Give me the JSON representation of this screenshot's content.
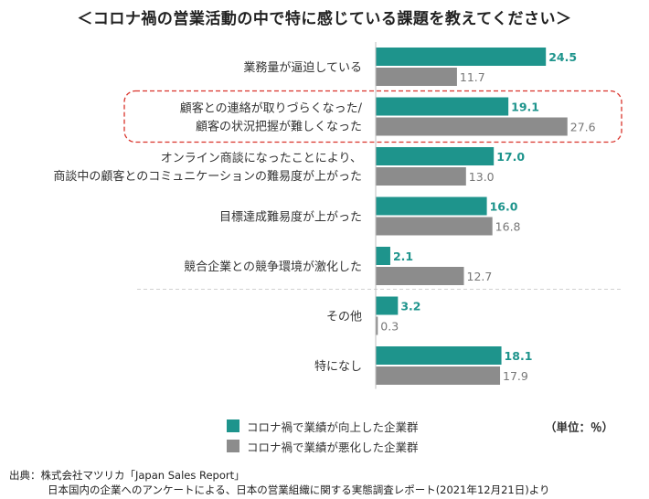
{
  "title": "＜コロナ禍の営業活動の中で特に感じている課題を教えてください＞",
  "colors": {
    "improved": "#1e948c",
    "worsened": "#8c8c8c",
    "highlight": "#d9322a"
  },
  "legend": {
    "improved": "コロナ禍で業績が向上した企業群",
    "worsened": "コロナ禍で業績が悪化した企業群"
  },
  "unit": "（単位：％）",
  "source": {
    "line1": "出典：株式会社マツリカ「Japan Sales Report」",
    "line2": "日本国内の企業へのアンケートによる、日本の営業組織に関する実態調査レポート(2021年12月21日)より"
  },
  "chart_data": {
    "type": "bar",
    "orientation": "horizontal",
    "categories": [
      [
        "業務量が逼迫している"
      ],
      [
        "顧客との連絡が取りづらくなった/",
        "顧客の状況把握が難しくなった"
      ],
      [
        "オンライン商談になったことにより、",
        "商談中の顧客とのコミュニケーションの難易度が上がった"
      ],
      [
        "目標達成難易度が上がった"
      ],
      [
        "競合企業との競争環境が激化した"
      ],
      [
        "その他"
      ],
      [
        "特になし"
      ]
    ],
    "series": [
      {
        "name": "コロナ禍で業績が向上した企業群",
        "values": [
          24.5,
          19.1,
          17.0,
          16.0,
          2.1,
          3.2,
          18.1
        ]
      },
      {
        "name": "コロナ禍で業績が悪化した企業群",
        "values": [
          11.7,
          27.6,
          13.0,
          16.8,
          12.7,
          0.3,
          17.9
        ]
      }
    ],
    "value_labels": [
      [
        "24.5",
        "19.1",
        "17.0",
        "16.0",
        "2.1",
        "3.2",
        "18.1"
      ],
      [
        "11.7",
        "27.6",
        "13.0",
        "16.8",
        "12.7",
        "0.3",
        "17.9"
      ]
    ],
    "xlim": [
      0,
      30
    ],
    "highlight_index": 1,
    "separator_after_index": 4
  }
}
